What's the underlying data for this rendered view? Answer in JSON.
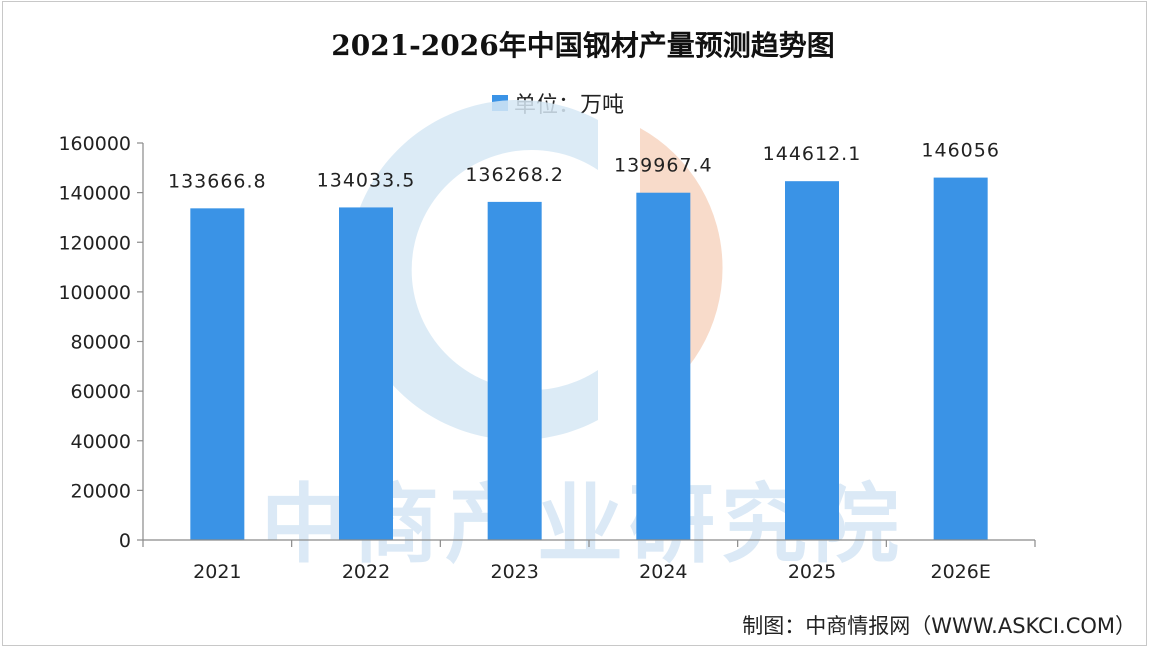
{
  "chart_data": {
    "type": "bar",
    "title": "2021-2026年中国钢材产量预测趋势图",
    "legend": "单位：万吨",
    "categories": [
      "2021",
      "2022",
      "2023",
      "2024",
      "2025",
      "2026E"
    ],
    "values": [
      133666.8,
      134033.5,
      136268.2,
      139967.4,
      144612.1,
      146056
    ],
    "data_labels": [
      "133666.8",
      "134033.5",
      "136268.2",
      "139967.4",
      "144612.1",
      "146056"
    ],
    "yticks": [
      "0",
      "20000",
      "40000",
      "60000",
      "80000",
      "100000",
      "120000",
      "140000",
      "160000"
    ],
    "ylim": [
      0,
      160000
    ],
    "xlabel": "",
    "ylabel": "",
    "grid": false,
    "bar_color": "#3a93e6"
  },
  "footer": {
    "source": "制图：中商情报网（WWW.ASKCI.COM）"
  },
  "watermark": {
    "text": "中商产业研究院"
  }
}
